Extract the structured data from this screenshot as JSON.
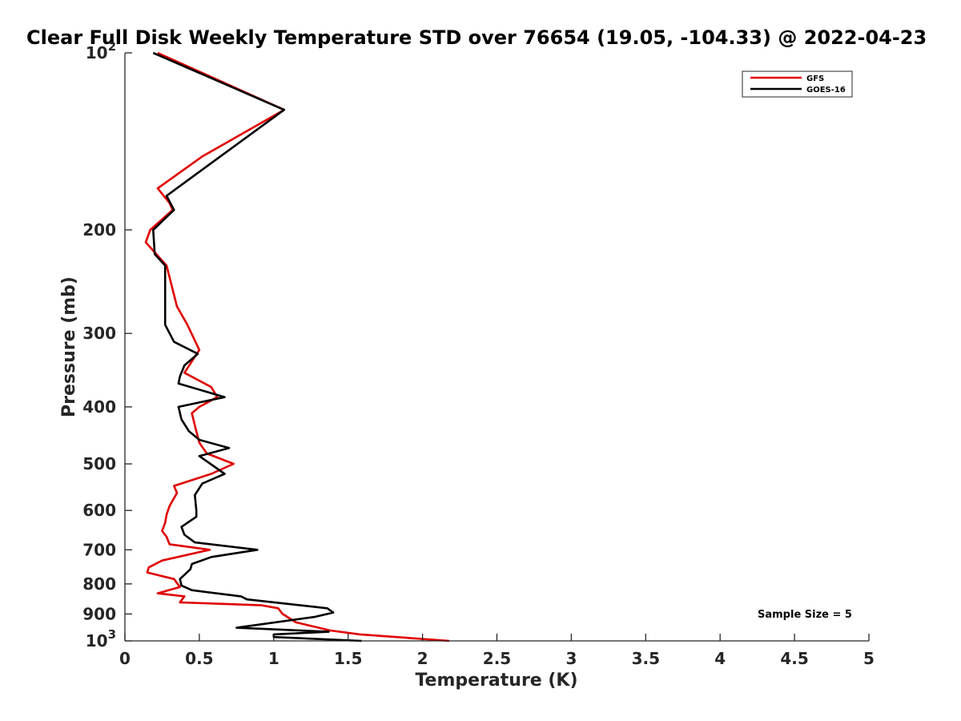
{
  "chart_data": {
    "type": "line",
    "title": "Clear Full Disk Weekly Temperature STD over 76654 (19.05, -104.33) @ 2022-04-23",
    "xlabel": "Temperature (K)",
    "ylabel": "Pressure (mb)",
    "xlim": [
      0,
      5
    ],
    "ylim": [
      100,
      1000
    ],
    "y_scale": "log",
    "y_reversed": true,
    "grid": false,
    "legend_position": "top-right",
    "x_ticks": [
      0,
      0.5,
      1,
      1.5,
      2,
      2.5,
      3,
      3.5,
      4,
      4.5,
      5
    ],
    "x_tick_labels": [
      "0",
      "0.5",
      "1",
      "1.5",
      "2",
      "2.5",
      "3",
      "3.5",
      "4",
      "4.5",
      "5"
    ],
    "y_ticks": [
      100,
      200,
      300,
      400,
      500,
      600,
      700,
      800,
      900,
      1000
    ],
    "y_tick_labels": [
      {
        "base": "10",
        "exp": "2"
      },
      {
        "base": "200",
        "exp": ""
      },
      {
        "base": "300",
        "exp": ""
      },
      {
        "base": "400",
        "exp": ""
      },
      {
        "base": "500",
        "exp": ""
      },
      {
        "base": "600",
        "exp": ""
      },
      {
        "base": "700",
        "exp": ""
      },
      {
        "base": "800",
        "exp": ""
      },
      {
        "base": "900",
        "exp": ""
      },
      {
        "base": "10",
        "exp": "3"
      }
    ],
    "annotation": "Sample Size = 5",
    "series": [
      {
        "name": "GFS",
        "color": "#e00000",
        "points": [
          [
            0.22,
            100
          ],
          [
            1.07,
            125
          ],
          [
            0.52,
            150
          ],
          [
            0.22,
            170
          ],
          [
            0.3,
            180
          ],
          [
            0.32,
            185
          ],
          [
            0.17,
            200
          ],
          [
            0.14,
            210
          ],
          [
            0.28,
            230
          ],
          [
            0.35,
            270
          ],
          [
            0.42,
            290
          ],
          [
            0.5,
            320
          ],
          [
            0.4,
            350
          ],
          [
            0.58,
            370
          ],
          [
            0.62,
            385
          ],
          [
            0.5,
            400
          ],
          [
            0.45,
            410
          ],
          [
            0.47,
            430
          ],
          [
            0.5,
            460
          ],
          [
            0.55,
            480
          ],
          [
            0.73,
            500
          ],
          [
            0.58,
            520
          ],
          [
            0.33,
            545
          ],
          [
            0.35,
            560
          ],
          [
            0.3,
            590
          ],
          [
            0.28,
            610
          ],
          [
            0.27,
            630
          ],
          [
            0.25,
            650
          ],
          [
            0.28,
            665
          ],
          [
            0.3,
            685
          ],
          [
            0.57,
            700
          ],
          [
            0.25,
            730
          ],
          [
            0.16,
            750
          ],
          [
            0.15,
            765
          ],
          [
            0.33,
            785
          ],
          [
            0.37,
            810
          ],
          [
            0.22,
            830
          ],
          [
            0.4,
            840
          ],
          [
            0.37,
            860
          ],
          [
            0.92,
            870
          ],
          [
            1.03,
            880
          ],
          [
            1.06,
            900
          ],
          [
            1.15,
            930
          ],
          [
            1.38,
            960
          ],
          [
            1.58,
            975
          ],
          [
            2.18,
            1000
          ]
        ]
      },
      {
        "name": "GOES-16",
        "color": "#000000",
        "points": [
          [
            0.19,
            100
          ],
          [
            1.07,
            125
          ],
          [
            0.28,
            175
          ],
          [
            0.33,
            185
          ],
          [
            0.19,
            200
          ],
          [
            0.2,
            220
          ],
          [
            0.27,
            230
          ],
          [
            0.27,
            290
          ],
          [
            0.33,
            310
          ],
          [
            0.49,
            325
          ],
          [
            0.4,
            340
          ],
          [
            0.37,
            355
          ],
          [
            0.36,
            365
          ],
          [
            0.67,
            385
          ],
          [
            0.36,
            400
          ],
          [
            0.38,
            420
          ],
          [
            0.43,
            440
          ],
          [
            0.5,
            455
          ],
          [
            0.7,
            470
          ],
          [
            0.5,
            485
          ],
          [
            0.67,
            520
          ],
          [
            0.52,
            540
          ],
          [
            0.47,
            565
          ],
          [
            0.48,
            600
          ],
          [
            0.48,
            615
          ],
          [
            0.38,
            640
          ],
          [
            0.4,
            660
          ],
          [
            0.47,
            680
          ],
          [
            0.89,
            700
          ],
          [
            0.58,
            720
          ],
          [
            0.45,
            740
          ],
          [
            0.44,
            755
          ],
          [
            0.37,
            785
          ],
          [
            0.38,
            805
          ],
          [
            0.45,
            820
          ],
          [
            0.78,
            840
          ],
          [
            0.82,
            850
          ],
          [
            1.36,
            880
          ],
          [
            1.4,
            895
          ],
          [
            1.28,
            910
          ],
          [
            0.75,
            950
          ],
          [
            1.37,
            965
          ],
          [
            1.0,
            975
          ],
          [
            1.0,
            985
          ],
          [
            1.59,
            1000
          ]
        ]
      }
    ]
  }
}
